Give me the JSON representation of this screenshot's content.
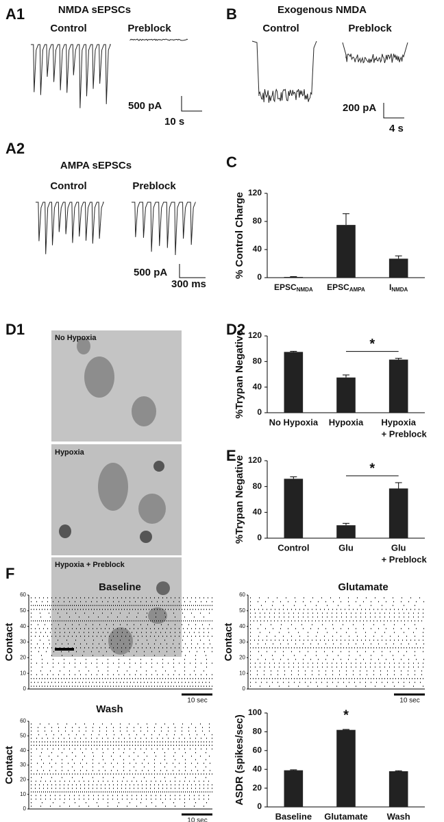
{
  "panels": {
    "A1": "A1",
    "B": "B",
    "A2": "A2",
    "C": "C",
    "D1": "D1",
    "D2": "D2",
    "E": "E",
    "F": "F"
  },
  "traces": {
    "a1": {
      "title": "NMDA sEPSCs",
      "left": "Control",
      "right": "Preblock",
      "scale_y": "500 pA",
      "scale_x": "10 s"
    },
    "b": {
      "title": "Exogenous NMDA",
      "left": "Control",
      "right": "Preblock",
      "scale_y": "200 pA",
      "scale_x": "4 s"
    },
    "a2": {
      "title": "AMPA sEPSCs",
      "left": "Control",
      "right": "Preblock",
      "scale_y": "500 pA",
      "scale_x": "300 ms"
    }
  },
  "micrographs": [
    "No Hypoxia",
    "Hypoxia",
    "Hypoxia + Preblock"
  ],
  "rasters": [
    {
      "title": "Baseline",
      "ylabel": "Contact",
      "ylim": [
        0,
        60
      ],
      "yticks": [
        0,
        10,
        20,
        30,
        40,
        50,
        60
      ],
      "scalebar": "10 sec"
    },
    {
      "title": "Glutamate",
      "ylabel": "Contact",
      "ylim": [
        0,
        60
      ],
      "yticks": [
        0,
        10,
        20,
        30,
        40,
        50,
        60
      ],
      "scalebar": "10 sec"
    },
    {
      "title": "Wash",
      "ylabel": "Contact",
      "ylim": [
        0,
        60
      ],
      "yticks": [
        0,
        10,
        20,
        30,
        40,
        50,
        60
      ],
      "scalebar": "10 sec"
    }
  ],
  "chart_data": [
    {
      "type": "bar",
      "ylabel": "% Control Charge",
      "categories": [
        [
          "EPSC",
          "NMDA"
        ],
        [
          "EPSC",
          "AMPA"
        ],
        [
          "I",
          "NMDA"
        ]
      ],
      "values": [
        1,
        75,
        27
      ],
      "errors": [
        0.5,
        16,
        4
      ],
      "color": "#222222",
      "ylim": [
        0,
        120
      ],
      "yticks": [
        0,
        40,
        80,
        120
      ]
    },
    {
      "type": "bar",
      "ylabel": "%Trypan Negative",
      "categories": [
        [
          "No Hypoxia"
        ],
        [
          "Hypoxia"
        ],
        [
          "Hypoxia",
          "+ Preblock"
        ]
      ],
      "values": [
        95,
        55,
        83
      ],
      "errors": [
        1,
        4,
        2
      ],
      "color": "#222222",
      "ylim": [
        0,
        120
      ],
      "yticks": [
        0,
        40,
        80,
        120
      ],
      "annotations": [
        {
          "text": "*",
          "categories": [
            1,
            2
          ]
        }
      ]
    },
    {
      "type": "bar",
      "ylabel": "%Trypan Negative",
      "categories": [
        [
          "Control"
        ],
        [
          "Glu"
        ],
        [
          "Glu",
          "+  Preblock"
        ]
      ],
      "values": [
        92,
        20,
        77
      ],
      "errors": [
        3,
        3,
        9
      ],
      "color": "#222222",
      "ylim": [
        0,
        120
      ],
      "yticks": [
        0,
        40,
        80,
        120
      ],
      "annotations": [
        {
          "text": "*",
          "categories": [
            1,
            2
          ]
        }
      ]
    },
    {
      "type": "bar",
      "ylabel": "ASDR (spikes/sec)",
      "categories": [
        [
          "Baseline"
        ],
        [
          "Glutamate"
        ],
        [
          "Wash"
        ]
      ],
      "values": [
        39,
        82,
        38
      ],
      "errors": [
        0.5,
        0.5,
        0.5
      ],
      "color": "#222222",
      "ylim": [
        0,
        100
      ],
      "yticks": [
        0,
        20,
        40,
        60,
        80,
        100
      ],
      "annotations": [
        {
          "text": "*",
          "categories": [
            1
          ]
        }
      ]
    }
  ]
}
